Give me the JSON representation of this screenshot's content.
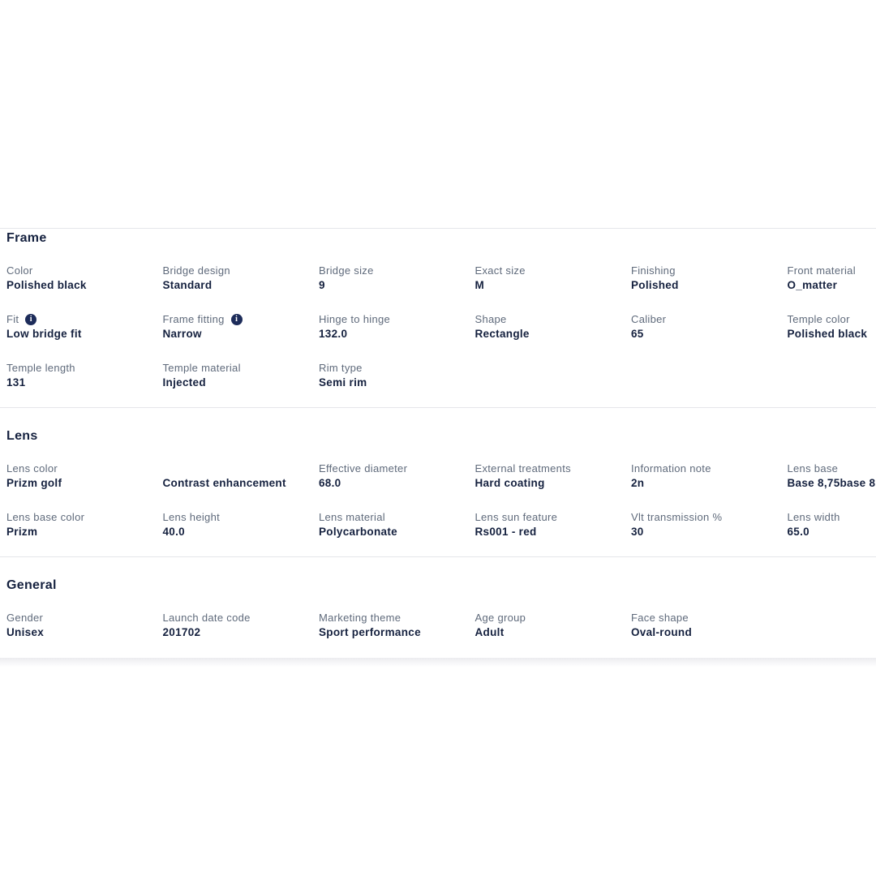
{
  "theme": {
    "navy": "#15213f",
    "label": "#5f6a7b",
    "divider": "#e5e6ea",
    "info": "#1d2c5a",
    "band": "#ececef"
  },
  "sections": [
    {
      "title": "Frame",
      "rows": [
        [
          {
            "label": "Color",
            "value": "Polished black"
          },
          {
            "label": "Bridge design",
            "value": "Standard"
          },
          {
            "label": "Bridge size",
            "value": "9"
          },
          {
            "label": "Exact size",
            "value": "M"
          },
          {
            "label": "Finishing",
            "value": "Polished"
          },
          {
            "label": "Front material",
            "value": "O_matter"
          }
        ],
        [
          {
            "label": "Fit",
            "value": "Low bridge fit",
            "info": true
          },
          {
            "label": "Frame fitting",
            "value": "Narrow",
            "info": true
          },
          {
            "label": "Hinge to hinge",
            "value": "132.0"
          },
          {
            "label": "Shape",
            "value": "Rectangle"
          },
          {
            "label": "Caliber",
            "value": "65"
          },
          {
            "label": "Temple color",
            "value": "Polished black"
          }
        ],
        [
          {
            "label": "Temple length",
            "value": "131"
          },
          {
            "label": "Temple material",
            "value": "Injected"
          },
          {
            "label": "Rim type",
            "value": "Semi rim"
          }
        ]
      ]
    },
    {
      "title": "Lens",
      "rows": [
        [
          {
            "label": "Lens color",
            "value": "Prizm golf"
          },
          {
            "label": "",
            "value": "Contrast enhancement"
          },
          {
            "label": "Effective diameter",
            "value": "68.0"
          },
          {
            "label": "External treatments",
            "value": "Hard coating"
          },
          {
            "label": "Information note",
            "value": "2n"
          },
          {
            "label": "Lens base",
            "value": "Base 8,75base 8"
          }
        ],
        [
          {
            "label": "Lens base color",
            "value": "Prizm"
          },
          {
            "label": "Lens height",
            "value": "40.0"
          },
          {
            "label": "Lens material",
            "value": "Polycarbonate"
          },
          {
            "label": "Lens sun feature",
            "value": "Rs001 - red"
          },
          {
            "label": "Vlt transmission %",
            "value": "30"
          },
          {
            "label": "Lens width",
            "value": "65.0"
          }
        ]
      ]
    },
    {
      "title": "General",
      "rows": [
        [
          {
            "label": "Gender",
            "value": "Unisex"
          },
          {
            "label": "Launch date code",
            "value": "201702"
          },
          {
            "label": "Marketing theme",
            "value": "Sport performance"
          },
          {
            "label": "Age group",
            "value": "Adult"
          },
          {
            "label": "Face shape",
            "value": "Oval-round"
          }
        ]
      ]
    }
  ],
  "icons": {
    "info_glyph": "i"
  }
}
